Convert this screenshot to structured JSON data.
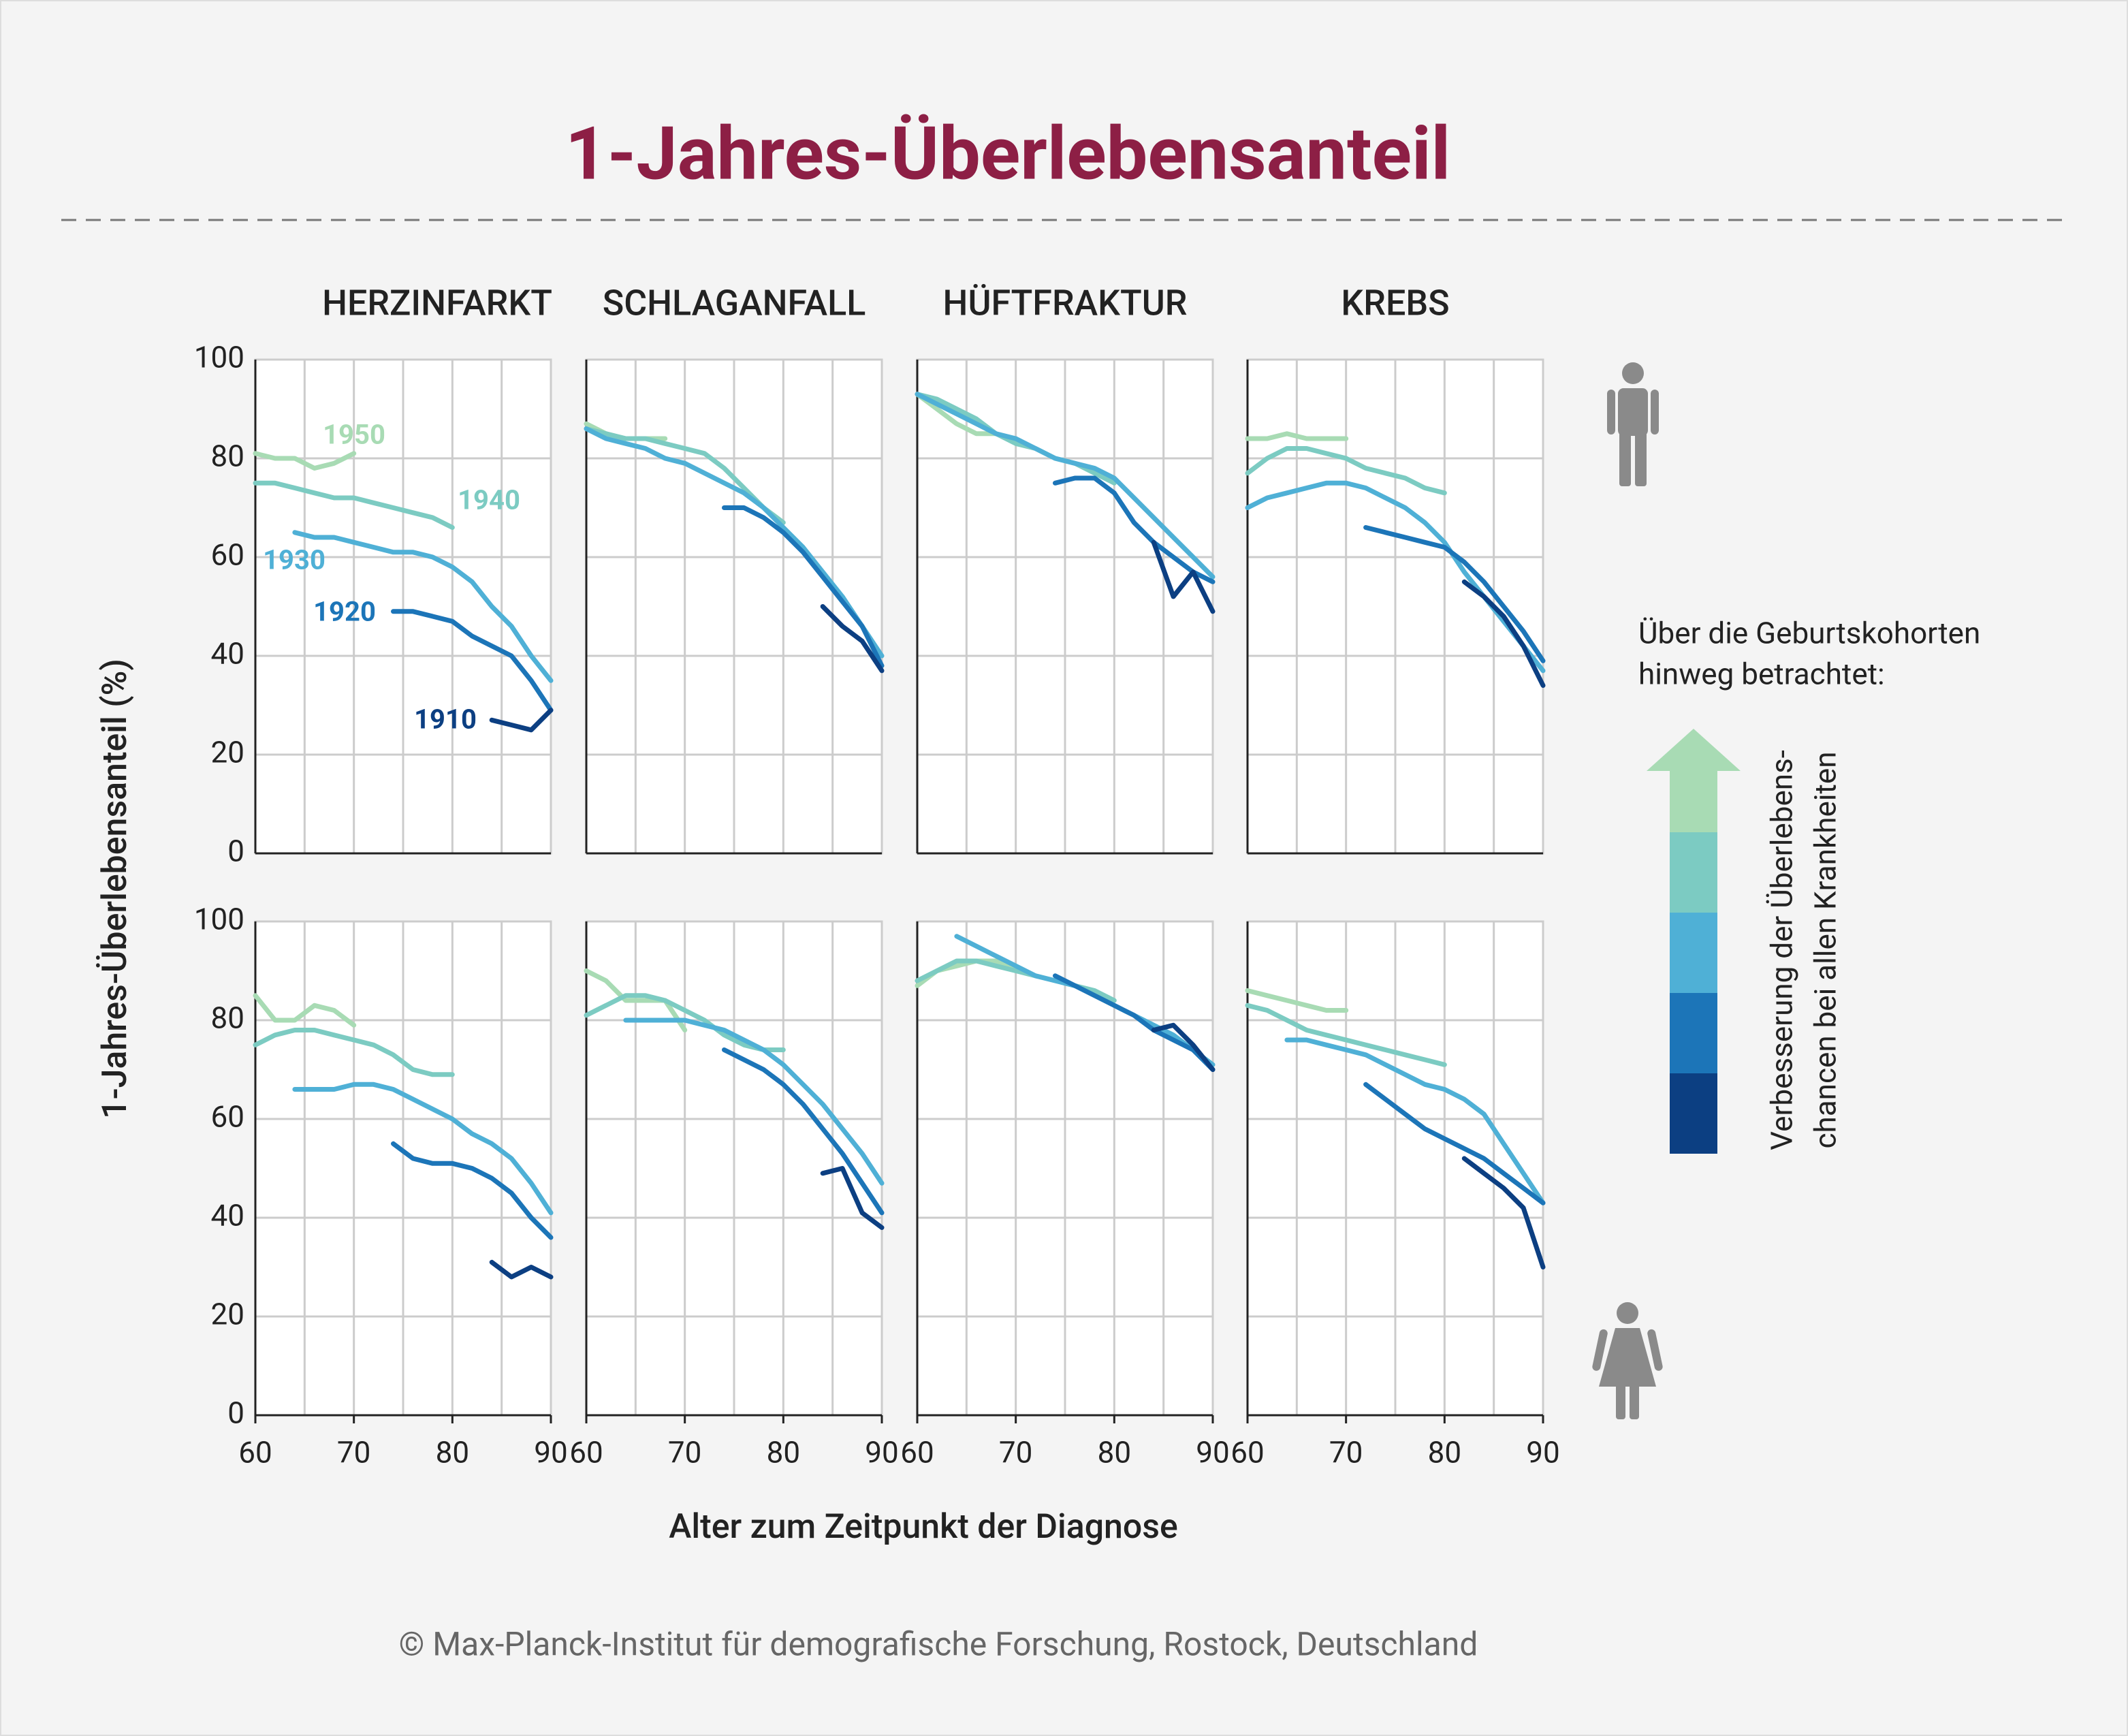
{
  "title": "1-Jahres-Überlebensanteil",
  "y_label": "1-Jahres-Überlebensanteil (%)",
  "x_label": "Alter zum Zeitpunkt der Diagnose",
  "legend": {
    "heading_line1": "Über die Geburtskohorten",
    "heading_line2": "hinweg betrachtet:",
    "arrow_line1": "Verbesserung der Überlebens-",
    "arrow_line2": "chancen bei allen Krankheiten"
  },
  "source": "© Max-Planck-Institut für demografische Forschung, Rostock, Deutschland",
  "chart_data": [
    {
      "type": "line",
      "title": "HERZINFARKT",
      "xlim": [
        60,
        90
      ],
      "ylim": [
        0,
        100
      ],
      "yticks": [
        0,
        20,
        40,
        60,
        80,
        100
      ],
      "xgrid": [
        60,
        65,
        70,
        75,
        80,
        85,
        90
      ],
      "x": [
        60,
        62,
        64,
        66,
        68,
        70,
        72,
        74,
        76,
        78,
        80,
        82,
        84,
        86,
        88,
        90
      ],
      "series": [
        {
          "name": "1950",
          "color": "#a8dbb4",
          "values": [
            81,
            80,
            80,
            78,
            79,
            81,
            null,
            null,
            null,
            null,
            null,
            null,
            null,
            null,
            null,
            null
          ]
        },
        {
          "name": "1940",
          "color": "#7ccbc2",
          "values": [
            75,
            75,
            74,
            73,
            72,
            72,
            71,
            70,
            69,
            68,
            66,
            null,
            null,
            null,
            null,
            null
          ]
        },
        {
          "name": "1930",
          "color": "#4fb0d6",
          "values": [
            null,
            null,
            65,
            64,
            64,
            63,
            62,
            61,
            61,
            60,
            58,
            55,
            50,
            46,
            40,
            35
          ]
        },
        {
          "name": "1920",
          "color": "#1c75b8",
          "values": [
            null,
            null,
            null,
            null,
            null,
            null,
            null,
            49,
            49,
            48,
            47,
            44,
            42,
            40,
            35,
            29
          ]
        },
        {
          "name": "1910",
          "color": "#0c3f82",
          "values": [
            null,
            null,
            null,
            null,
            null,
            null,
            null,
            null,
            null,
            null,
            null,
            null,
            27,
            26,
            25,
            29
          ]
        }
      ]
    },
    {
      "type": "line",
      "title": "SCHLAGANFALL",
      "xlim": [
        60,
        90
      ],
      "ylim": [
        0,
        100
      ],
      "yticks": [
        0,
        20,
        40,
        60,
        80,
        100
      ],
      "xgrid": [
        60,
        65,
        70,
        75,
        80,
        85,
        90
      ],
      "x": [
        60,
        62,
        64,
        66,
        68,
        70,
        72,
        74,
        76,
        78,
        80,
        82,
        84,
        86,
        88,
        90
      ],
      "series": [
        {
          "color": "#a8dbb4",
          "values": [
            87,
            85,
            84,
            84,
            84,
            null,
            null,
            null,
            null,
            null,
            null,
            null,
            null,
            null,
            null,
            null
          ]
        },
        {
          "color": "#7ccbc2",
          "values": [
            86,
            85,
            84,
            84,
            83,
            82,
            81,
            78,
            74,
            70,
            67,
            null,
            null,
            null,
            null,
            null
          ]
        },
        {
          "color": "#4fb0d6",
          "values": [
            86,
            84,
            83,
            82,
            80,
            79,
            77,
            75,
            73,
            70,
            66,
            62,
            57,
            52,
            46,
            40
          ]
        },
        {
          "color": "#1c75b8",
          "values": [
            null,
            null,
            null,
            null,
            null,
            null,
            null,
            70,
            70,
            68,
            65,
            61,
            56,
            51,
            46,
            38
          ]
        },
        {
          "color": "#0c3f82",
          "values": [
            null,
            null,
            null,
            null,
            null,
            null,
            null,
            null,
            null,
            null,
            null,
            null,
            50,
            46,
            43,
            37
          ]
        }
      ]
    },
    {
      "type": "line",
      "title": "HÜFTFRAKTUR",
      "xlim": [
        60,
        90
      ],
      "ylim": [
        0,
        100
      ],
      "yticks": [
        0,
        20,
        40,
        60,
        80,
        100
      ],
      "xgrid": [
        60,
        65,
        70,
        75,
        80,
        85,
        90
      ],
      "x": [
        60,
        62,
        64,
        66,
        68,
        70,
        72,
        74,
        76,
        78,
        80,
        82,
        84,
        86,
        88,
        90
      ],
      "series": [
        {
          "color": "#a8dbb4",
          "values": [
            93,
            90,
            87,
            85,
            85,
            null,
            null,
            null,
            null,
            null,
            null,
            null,
            null,
            null,
            null,
            null
          ]
        },
        {
          "color": "#7ccbc2",
          "values": [
            93,
            92,
            90,
            88,
            85,
            83,
            82,
            80,
            79,
            77,
            75,
            null,
            null,
            null,
            null,
            null
          ]
        },
        {
          "color": "#4fb0d6",
          "values": [
            93,
            91,
            89,
            87,
            85,
            84,
            82,
            80,
            79,
            78,
            76,
            72,
            68,
            64,
            60,
            56
          ]
        },
        {
          "color": "#1c75b8",
          "values": [
            null,
            null,
            null,
            null,
            null,
            null,
            null,
            75,
            76,
            76,
            73,
            67,
            63,
            60,
            57,
            55
          ]
        },
        {
          "color": "#0c3f82",
          "values": [
            null,
            null,
            null,
            null,
            null,
            null,
            null,
            null,
            null,
            null,
            null,
            null,
            63,
            52,
            57,
            49
          ]
        }
      ]
    },
    {
      "type": "line",
      "title": "KREBS",
      "xlim": [
        60,
        90
      ],
      "ylim": [
        0,
        100
      ],
      "yticks": [
        0,
        20,
        40,
        60,
        80,
        100
      ],
      "xgrid": [
        60,
        65,
        70,
        75,
        80,
        85,
        90
      ],
      "x": [
        60,
        62,
        64,
        66,
        68,
        70,
        72,
        74,
        76,
        78,
        80,
        82,
        84,
        86,
        88,
        90
      ],
      "series": [
        {
          "color": "#a8dbb4",
          "values": [
            84,
            84,
            85,
            84,
            84,
            84,
            null,
            null,
            null,
            null,
            null,
            null,
            null,
            null,
            null,
            null
          ]
        },
        {
          "color": "#7ccbc2",
          "values": [
            77,
            80,
            82,
            82,
            81,
            80,
            78,
            77,
            76,
            74,
            73,
            null,
            null,
            null,
            null,
            null
          ]
        },
        {
          "color": "#4fb0d6",
          "values": [
            70,
            72,
            73,
            74,
            75,
            75,
            74,
            72,
            70,
            67,
            63,
            57,
            52,
            47,
            42,
            37
          ]
        },
        {
          "color": "#1c75b8",
          "values": [
            null,
            null,
            null,
            null,
            null,
            null,
            66,
            65,
            64,
            63,
            62,
            59,
            55,
            50,
            45,
            39
          ]
        },
        {
          "color": "#0c3f82",
          "values": [
            null,
            null,
            null,
            null,
            null,
            null,
            null,
            null,
            null,
            null,
            null,
            55,
            52,
            48,
            42,
            34
          ]
        }
      ]
    },
    {
      "type": "line",
      "xlim": [
        60,
        90
      ],
      "ylim": [
        0,
        100
      ],
      "yticks": [
        0,
        20,
        40,
        60,
        80,
        100
      ],
      "xticks": [
        60,
        70,
        80,
        90
      ],
      "xgrid": [
        60,
        65,
        70,
        75,
        80,
        85,
        90
      ],
      "x": [
        60,
        62,
        64,
        66,
        68,
        70,
        72,
        74,
        76,
        78,
        80,
        82,
        84,
        86,
        88,
        90
      ],
      "series": [
        {
          "color": "#a8dbb4",
          "values": [
            85,
            80,
            80,
            83,
            82,
            79,
            null,
            null,
            null,
            null,
            null,
            null,
            null,
            null,
            null,
            null
          ]
        },
        {
          "color": "#7ccbc2",
          "values": [
            75,
            77,
            78,
            78,
            77,
            76,
            75,
            73,
            70,
            69,
            69,
            null,
            null,
            null,
            null,
            null
          ]
        },
        {
          "color": "#4fb0d6",
          "values": [
            null,
            null,
            66,
            66,
            66,
            67,
            67,
            66,
            64,
            62,
            60,
            57,
            55,
            52,
            47,
            41
          ]
        },
        {
          "color": "#1c75b8",
          "values": [
            null,
            null,
            null,
            null,
            null,
            null,
            null,
            55,
            52,
            51,
            51,
            50,
            48,
            45,
            40,
            36
          ]
        },
        {
          "color": "#0c3f82",
          "values": [
            null,
            null,
            null,
            null,
            null,
            null,
            null,
            null,
            null,
            null,
            null,
            null,
            31,
            28,
            30,
            28
          ]
        }
      ]
    },
    {
      "type": "line",
      "xlim": [
        60,
        90
      ],
      "ylim": [
        0,
        100
      ],
      "yticks": [
        0,
        20,
        40,
        60,
        80,
        100
      ],
      "xticks": [
        60,
        70,
        80,
        90
      ],
      "xgrid": [
        60,
        65,
        70,
        75,
        80,
        85,
        90
      ],
      "x": [
        60,
        62,
        64,
        66,
        68,
        70,
        72,
        74,
        76,
        78,
        80,
        82,
        84,
        86,
        88,
        90
      ],
      "series": [
        {
          "color": "#a8dbb4",
          "values": [
            90,
            88,
            84,
            84,
            84,
            78,
            null,
            null,
            null,
            null,
            null,
            null,
            null,
            null,
            null,
            null
          ]
        },
        {
          "color": "#7ccbc2",
          "values": [
            81,
            83,
            85,
            85,
            84,
            82,
            80,
            77,
            75,
            74,
            74,
            null,
            null,
            null,
            null,
            null
          ]
        },
        {
          "color": "#4fb0d6",
          "values": [
            null,
            null,
            80,
            80,
            80,
            80,
            79,
            78,
            76,
            74,
            71,
            67,
            63,
            58,
            53,
            47
          ]
        },
        {
          "color": "#1c75b8",
          "values": [
            null,
            null,
            null,
            null,
            null,
            null,
            null,
            74,
            72,
            70,
            67,
            63,
            58,
            53,
            47,
            41
          ]
        },
        {
          "color": "#0c3f82",
          "values": [
            null,
            null,
            null,
            null,
            null,
            null,
            null,
            null,
            null,
            null,
            null,
            null,
            49,
            50,
            41,
            38
          ]
        }
      ]
    },
    {
      "type": "line",
      "xlim": [
        60,
        90
      ],
      "ylim": [
        0,
        100
      ],
      "yticks": [
        0,
        20,
        40,
        60,
        80,
        100
      ],
      "xticks": [
        60,
        70,
        80,
        90
      ],
      "xgrid": [
        60,
        65,
        70,
        75,
        80,
        85,
        90
      ],
      "x": [
        60,
        62,
        64,
        66,
        68,
        70,
        72,
        74,
        76,
        78,
        80,
        82,
        84,
        86,
        88,
        90
      ],
      "series": [
        {
          "color": "#a8dbb4",
          "values": [
            87,
            90,
            91,
            92,
            92,
            90,
            null,
            null,
            null,
            null,
            null,
            null,
            null,
            null,
            null,
            null
          ]
        },
        {
          "color": "#7ccbc2",
          "values": [
            88,
            90,
            92,
            92,
            91,
            90,
            89,
            88,
            87,
            86,
            84,
            null,
            null,
            null,
            null,
            null
          ]
        },
        {
          "color": "#4fb0d6",
          "values": [
            null,
            null,
            97,
            95,
            93,
            91,
            89,
            88,
            87,
            85,
            83,
            81,
            79,
            77,
            74,
            71
          ]
        },
        {
          "color": "#1c75b8",
          "values": [
            null,
            null,
            null,
            null,
            null,
            null,
            null,
            89,
            87,
            85,
            83,
            81,
            78,
            76,
            74,
            70
          ]
        },
        {
          "color": "#0c3f82",
          "values": [
            null,
            null,
            null,
            null,
            null,
            null,
            null,
            null,
            null,
            null,
            null,
            null,
            78,
            79,
            75,
            70
          ]
        }
      ]
    },
    {
      "type": "line",
      "xlim": [
        60,
        90
      ],
      "ylim": [
        0,
        100
      ],
      "yticks": [
        0,
        20,
        40,
        60,
        80,
        100
      ],
      "xticks": [
        60,
        70,
        80,
        90
      ],
      "xgrid": [
        60,
        65,
        70,
        75,
        80,
        85,
        90
      ],
      "x": [
        60,
        62,
        64,
        66,
        68,
        70,
        72,
        74,
        76,
        78,
        80,
        82,
        84,
        86,
        88,
        90
      ],
      "series": [
        {
          "color": "#a8dbb4",
          "values": [
            86,
            85,
            84,
            83,
            82,
            82,
            null,
            null,
            null,
            null,
            null,
            null,
            null,
            null,
            null,
            null
          ]
        },
        {
          "color": "#7ccbc2",
          "values": [
            83,
            82,
            80,
            78,
            77,
            76,
            75,
            74,
            73,
            72,
            71,
            null,
            null,
            null,
            null,
            null
          ]
        },
        {
          "color": "#4fb0d6",
          "values": [
            null,
            null,
            76,
            76,
            75,
            74,
            73,
            71,
            69,
            67,
            66,
            64,
            61,
            55,
            49,
            43
          ]
        },
        {
          "color": "#1c75b8",
          "values": [
            null,
            null,
            null,
            null,
            null,
            null,
            67,
            64,
            61,
            58,
            56,
            54,
            52,
            49,
            46,
            43
          ]
        },
        {
          "color": "#0c3f82",
          "values": [
            null,
            null,
            null,
            null,
            null,
            null,
            null,
            null,
            null,
            null,
            null,
            52,
            49,
            46,
            42,
            30
          ]
        }
      ]
    }
  ]
}
